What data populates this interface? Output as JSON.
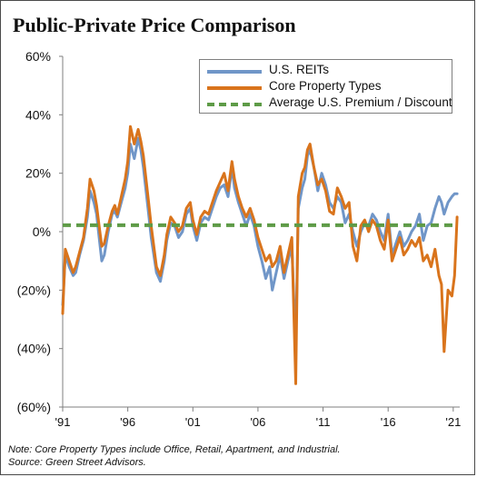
{
  "title": "Public-Private Price Comparison",
  "note_lines": [
    "Note: Core Property Types include Office, Retail, Apartment, and Industrial.",
    "Source: Green Street Advisors."
  ],
  "colors": {
    "reits": "#7096c8",
    "core": "#d9741c",
    "avg": "#5e9b47",
    "axis": "#7f7f7f",
    "text": "#111111"
  },
  "chart_data": {
    "type": "line",
    "title": "Public-Private Price Comparison",
    "xlabel": "",
    "ylabel": "",
    "x_ticks": [
      "'91",
      "'96",
      "'01",
      "'06",
      "'11",
      "'16",
      "'21"
    ],
    "x_tick_years": [
      1991,
      1996,
      2001,
      2006,
      2011,
      2016,
      2021
    ],
    "y_ticks": [
      "60%",
      "40%",
      "20%",
      "0%",
      "(20%)",
      "(40%)",
      "(60%)"
    ],
    "y_tick_values": [
      60,
      40,
      20,
      0,
      -20,
      -40,
      -60
    ],
    "xlim": [
      1991,
      2021.5
    ],
    "ylim": [
      -60,
      60
    ],
    "grid": false,
    "legend_position": "top-right",
    "series": [
      {
        "name": "U.S. REITs",
        "color": "#7096c8",
        "style": "solid",
        "x": [
          1991.0,
          1991.2,
          1991.5,
          1991.8,
          1992.0,
          1992.3,
          1992.6,
          1992.9,
          1993.1,
          1993.4,
          1993.6,
          1993.8,
          1994.0,
          1994.2,
          1994.5,
          1994.8,
          1995.0,
          1995.2,
          1995.5,
          1995.8,
          1996.0,
          1996.2,
          1996.5,
          1996.8,
          1997.0,
          1997.2,
          1997.4,
          1997.6,
          1997.8,
          1998.0,
          1998.2,
          1998.5,
          1998.8,
          1999.0,
          1999.3,
          1999.6,
          1999.9,
          2000.2,
          2000.5,
          2000.8,
          2001.0,
          2001.3,
          2001.6,
          2001.9,
          2002.2,
          2002.5,
          2002.8,
          2003.1,
          2003.4,
          2003.7,
          2004.0,
          2004.2,
          2004.5,
          2004.8,
          2005.1,
          2005.4,
          2005.7,
          2006.0,
          2006.3,
          2006.6,
          2006.9,
          2007.1,
          2007.4,
          2007.7,
          2008.0,
          2008.3,
          2008.6,
          2008.9,
          2009.1,
          2009.4,
          2009.6,
          2009.8,
          2010.0,
          2010.3,
          2010.6,
          2010.9,
          2011.2,
          2011.5,
          2011.8,
          2012.1,
          2012.4,
          2012.7,
          2013.0,
          2013.3,
          2013.6,
          2013.9,
          2014.2,
          2014.5,
          2014.8,
          2015.1,
          2015.4,
          2015.7,
          2016.0,
          2016.3,
          2016.6,
          2016.9,
          2017.2,
          2017.5,
          2017.8,
          2018.1,
          2018.4,
          2018.7,
          2019.0,
          2019.3,
          2019.6,
          2019.9,
          2020.1,
          2020.3,
          2020.6,
          2020.9,
          2021.1,
          2021.3
        ],
        "values": [
          -25,
          -8,
          -12,
          -15,
          -14,
          -8,
          -3,
          5,
          14,
          10,
          6,
          -2,
          -10,
          -8,
          0,
          6,
          7,
          5,
          10,
          15,
          20,
          30,
          25,
          32,
          28,
          22,
          14,
          6,
          -2,
          -8,
          -14,
          -17,
          -10,
          -3,
          3,
          2,
          -2,
          0,
          6,
          8,
          2,
          -3,
          3,
          5,
          4,
          8,
          12,
          15,
          16,
          12,
          22,
          15,
          10,
          6,
          2,
          6,
          2,
          -5,
          -10,
          -16,
          -12,
          -20,
          -14,
          -8,
          -16,
          -10,
          -5,
          -40,
          8,
          15,
          18,
          26,
          28,
          22,
          14,
          20,
          16,
          10,
          8,
          12,
          10,
          3,
          6,
          0,
          -5,
          0,
          3,
          2,
          6,
          4,
          0,
          -3,
          6,
          -8,
          -4,
          0,
          -5,
          -3,
          0,
          2,
          6,
          -3,
          2,
          3,
          8,
          12,
          10,
          6,
          10,
          12,
          13,
          13
        ]
      },
      {
        "name": "Core Property Types",
        "color": "#d9741c",
        "style": "solid",
        "x": [
          1991.0,
          1991.2,
          1991.5,
          1991.8,
          1992.0,
          1992.3,
          1992.6,
          1992.9,
          1993.1,
          1993.4,
          1993.6,
          1993.8,
          1994.0,
          1994.2,
          1994.5,
          1994.8,
          1995.0,
          1995.2,
          1995.5,
          1995.8,
          1996.0,
          1996.2,
          1996.5,
          1996.8,
          1997.0,
          1997.2,
          1997.4,
          1997.6,
          1997.8,
          1998.0,
          1998.2,
          1998.5,
          1998.8,
          1999.0,
          1999.3,
          1999.6,
          1999.9,
          2000.2,
          2000.5,
          2000.8,
          2001.0,
          2001.3,
          2001.6,
          2001.9,
          2002.2,
          2002.5,
          2002.8,
          2003.1,
          2003.4,
          2003.7,
          2004.0,
          2004.2,
          2004.5,
          2004.8,
          2005.1,
          2005.4,
          2005.7,
          2006.0,
          2006.3,
          2006.6,
          2006.9,
          2007.1,
          2007.4,
          2007.7,
          2008.0,
          2008.3,
          2008.6,
          2008.9,
          2009.1,
          2009.4,
          2009.6,
          2009.8,
          2010.0,
          2010.3,
          2010.6,
          2010.9,
          2011.2,
          2011.5,
          2011.8,
          2012.1,
          2012.4,
          2012.7,
          2013.0,
          2013.3,
          2013.6,
          2013.9,
          2014.2,
          2014.5,
          2014.8,
          2015.1,
          2015.4,
          2015.7,
          2016.0,
          2016.3,
          2016.6,
          2016.9,
          2017.2,
          2017.5,
          2017.8,
          2018.1,
          2018.4,
          2018.7,
          2019.0,
          2019.3,
          2019.6,
          2019.9,
          2020.1,
          2020.3,
          2020.6,
          2020.9,
          2021.1,
          2021.3
        ],
        "values": [
          -28,
          -6,
          -10,
          -14,
          -12,
          -7,
          -2,
          8,
          18,
          14,
          9,
          2,
          -5,
          -4,
          2,
          7,
          9,
          6,
          12,
          18,
          24,
          36,
          30,
          35,
          31,
          26,
          18,
          10,
          2,
          -5,
          -12,
          -15,
          -8,
          -1,
          5,
          3,
          0,
          2,
          8,
          10,
          4,
          -1,
          5,
          7,
          6,
          10,
          14,
          17,
          20,
          14,
          24,
          18,
          12,
          8,
          5,
          8,
          4,
          -2,
          -6,
          -10,
          -8,
          -12,
          -10,
          -5,
          -14,
          -8,
          -2,
          -52,
          12,
          20,
          22,
          28,
          30,
          22,
          16,
          18,
          14,
          7,
          6,
          15,
          12,
          8,
          10,
          -5,
          -10,
          2,
          4,
          0,
          4,
          2,
          -3,
          -6,
          4,
          -10,
          -6,
          -2,
          -8,
          -6,
          -3,
          -5,
          -2,
          -10,
          -8,
          -12,
          -6,
          -15,
          -18,
          -41,
          -20,
          -22,
          -15,
          5
        ]
      },
      {
        "name": "Average U.S. Premium / Discount",
        "color": "#5e9b47",
        "style": "dashed",
        "x": [
          1991.0,
          2021.3
        ],
        "values": [
          2.2,
          2.2
        ]
      }
    ]
  },
  "legend": [
    {
      "label": "U.S. REITs",
      "color": "#7096c8",
      "style": "solid"
    },
    {
      "label": "Core Property Types",
      "color": "#d9741c",
      "style": "solid"
    },
    {
      "label": "Average U.S. Premium / Discount",
      "color": "#5e9b47",
      "style": "dashed"
    }
  ]
}
